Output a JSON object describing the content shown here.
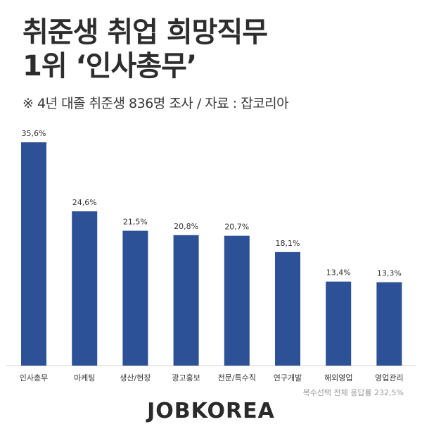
{
  "header": {
    "title_line1": "취준생 취업 희망직무",
    "title_line2": "1위 ‘인사총무’",
    "subtitle": "※ 4년 대졸 취준생 836명 조사 / 자료 : 잡코리아"
  },
  "chart_data": {
    "type": "bar",
    "categories": [
      "인사총무",
      "마케팅",
      "생산/현장",
      "광고홍보",
      "전문/특수직",
      "연구개발",
      "해외영업",
      "영업관리"
    ],
    "values": [
      35.6,
      24.6,
      21.5,
      20.8,
      20.7,
      18.1,
      13.4,
      13.3
    ],
    "value_labels": [
      "35,6%",
      "24,6%",
      "21,5%",
      "20,8%",
      "20,7%",
      "18,1%",
      "13,4%",
      "13,3%"
    ],
    "ylim": [
      0,
      40
    ],
    "grid": false,
    "bar_color": "#2c5196"
  },
  "footnote": "복수선택 전체 응답률 232,5%",
  "logo": "JOBKOREA"
}
